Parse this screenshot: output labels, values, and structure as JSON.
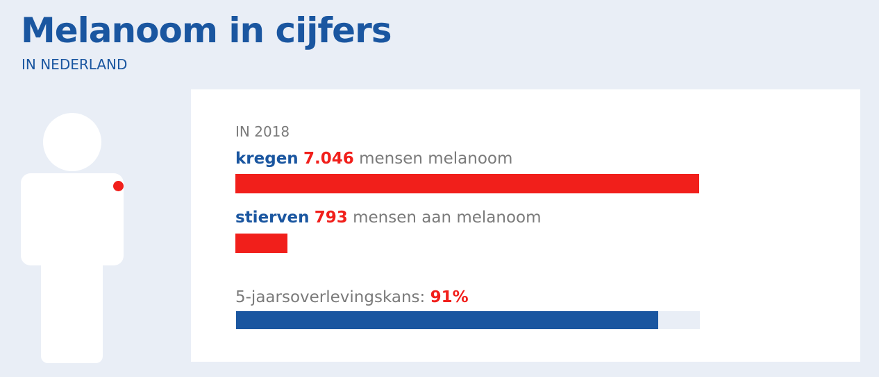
{
  "title": "Melanoom in cijfers",
  "subtitle": "IN NEDERLAND",
  "chart_data": {
    "type": "bar",
    "year_label": "IN 2018",
    "bars": [
      {
        "prefix": "kregen",
        "value_label": "7.046",
        "suffix": "mensen melanoom",
        "value": 7046,
        "max": 7046,
        "color": "#f11f1b"
      },
      {
        "prefix": "stierven",
        "value_label": "793",
        "suffix": "mensen aan melanoom",
        "value": 793,
        "max": 7046,
        "color": "#f11f1b"
      },
      {
        "prefix": "5-jaarsoverlevingskans:",
        "value_label": "91%",
        "suffix": "",
        "value": 91,
        "max": 100,
        "color": "#1a56a0"
      }
    ]
  },
  "colors": {
    "brand_blue": "#1a56a0",
    "accent_red": "#f11f1b",
    "background": "#e9eef6"
  }
}
